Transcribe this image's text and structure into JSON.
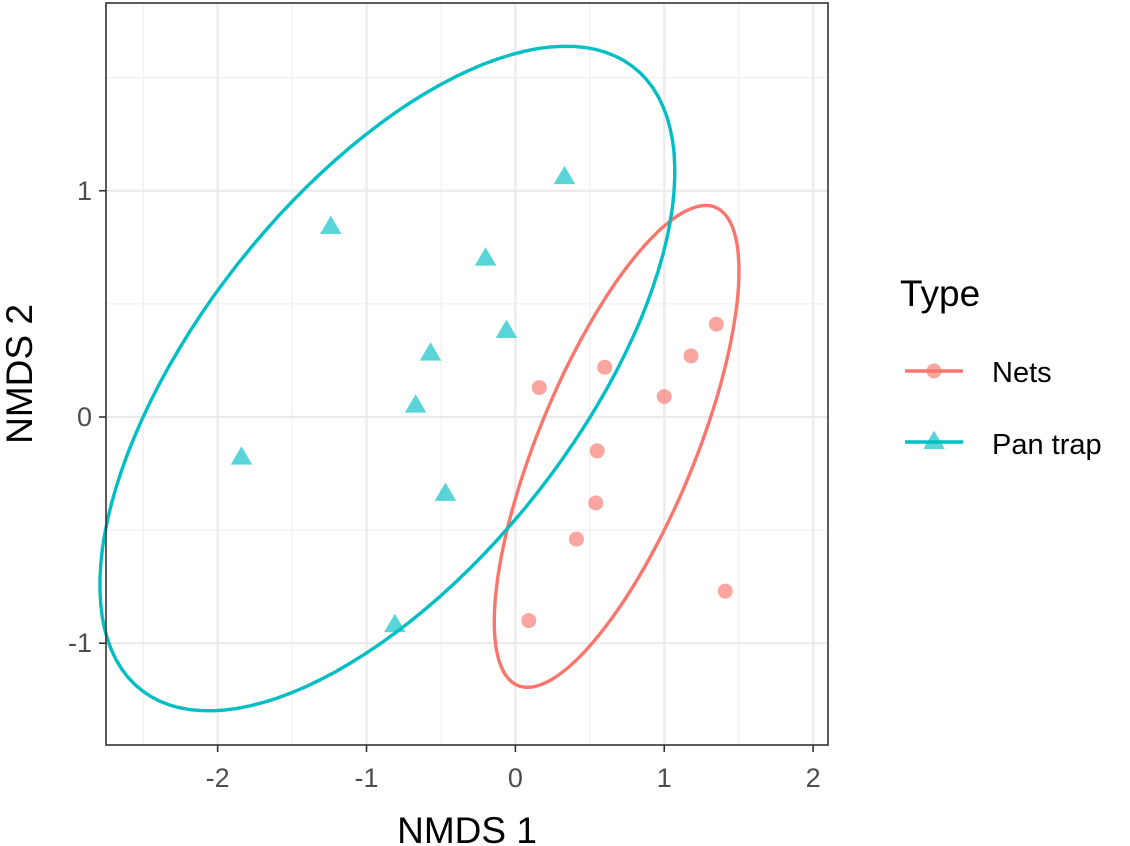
{
  "chart_data": {
    "type": "scatter",
    "title": "",
    "xlabel": "NMDS 1",
    "ylabel": "NMDS 2",
    "xlim": [
      -2.75,
      2.1
    ],
    "ylim": [
      -1.45,
      1.83
    ],
    "xticks": [
      -2,
      -1,
      0,
      1,
      2
    ],
    "xtick_labels": [
      "-2",
      "-1",
      "0",
      "1",
      "2"
    ],
    "yticks": [
      -1,
      0,
      1
    ],
    "ytick_labels": [
      "-1",
      "0",
      "1"
    ],
    "grid": true,
    "legend": {
      "title": "Type",
      "placement": "right",
      "entries": [
        "Nets",
        "Pan trap"
      ]
    },
    "series": [
      {
        "name": "Nets",
        "marker": "circle",
        "color": "#F8766D",
        "points": [
          {
            "x": 0.16,
            "y": 0.13
          },
          {
            "x": 0.6,
            "y": 0.22
          },
          {
            "x": 1.0,
            "y": 0.09
          },
          {
            "x": 1.18,
            "y": 0.27
          },
          {
            "x": 1.35,
            "y": 0.41
          },
          {
            "x": 0.55,
            "y": -0.15
          },
          {
            "x": 0.54,
            "y": -0.38
          },
          {
            "x": 0.41,
            "y": -0.54
          },
          {
            "x": 0.09,
            "y": -0.9
          },
          {
            "x": 1.41,
            "y": -0.77
          }
        ],
        "ellipse": {
          "cx": 0.68,
          "cy": -0.13,
          "semi_major": 1.258,
          "semi_minor": 0.477,
          "angle_deg": 54.9
        }
      },
      {
        "name": "Pan trap",
        "marker": "triangle",
        "color": "#00BFC4",
        "points": [
          {
            "x": 0.33,
            "y": 1.06
          },
          {
            "x": -1.24,
            "y": 0.84
          },
          {
            "x": -0.2,
            "y": 0.7
          },
          {
            "x": -0.06,
            "y": 0.38
          },
          {
            "x": -0.57,
            "y": 0.28
          },
          {
            "x": -0.67,
            "y": 0.05
          },
          {
            "x": -1.84,
            "y": -0.18
          },
          {
            "x": -0.47,
            "y": -0.34
          },
          {
            "x": -0.81,
            "y": -0.92
          }
        ],
        "ellipse": {
          "cx": -0.86,
          "cy": 0.17,
          "semi_major": 2.208,
          "semi_minor": 1.006,
          "angle_deg": 33.0
        }
      }
    ]
  }
}
